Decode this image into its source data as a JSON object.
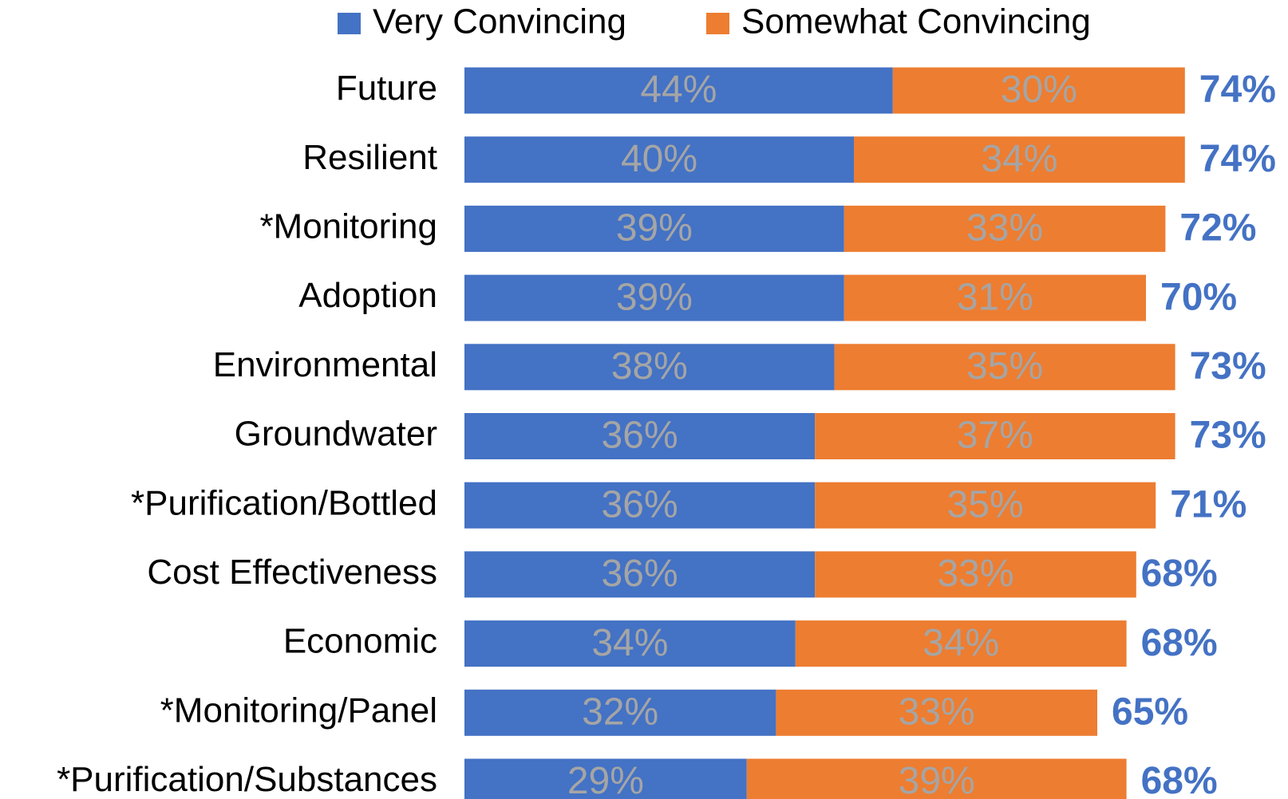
{
  "chart_data": {
    "type": "stacked-bar-horizontal",
    "categories": [
      "Future",
      "Resilient",
      "*Monitoring",
      "Adoption",
      "Environmental",
      "Groundwater",
      "*Purification/Bottled",
      "Cost Effectiveness",
      "Economic",
      "*Monitoring/Panel",
      "*Purification/Substances"
    ],
    "series": [
      {
        "name": "Very Convincing",
        "color": "#4472c4",
        "values": [
          44,
          40,
          39,
          39,
          38,
          36,
          36,
          36,
          34,
          32,
          29
        ],
        "value_labels": [
          "44%",
          "40%",
          "39%",
          "39%",
          "38%",
          "36%",
          "36%",
          "36%",
          "34%",
          "32%",
          "29%"
        ]
      },
      {
        "name": "Somewhat Convincing",
        "color": "#ed7d31",
        "values": [
          30,
          34,
          33,
          31,
          35,
          37,
          35,
          33,
          34,
          33,
          39
        ],
        "value_labels": [
          "30%",
          "34%",
          "33%",
          "31%",
          "35%",
          "37%",
          "35%",
          "33%",
          "34%",
          "33%",
          "39%"
        ]
      }
    ],
    "totals": {
      "values": [
        74,
        74,
        72,
        70,
        73,
        73,
        71,
        68,
        68,
        65,
        68
      ],
      "value_labels": [
        "74%",
        "74%",
        "72%",
        "70%",
        "73%",
        "73%",
        "71%",
        "68%",
        "68%",
        "65%",
        "68%"
      ]
    },
    "legend": "top"
  }
}
